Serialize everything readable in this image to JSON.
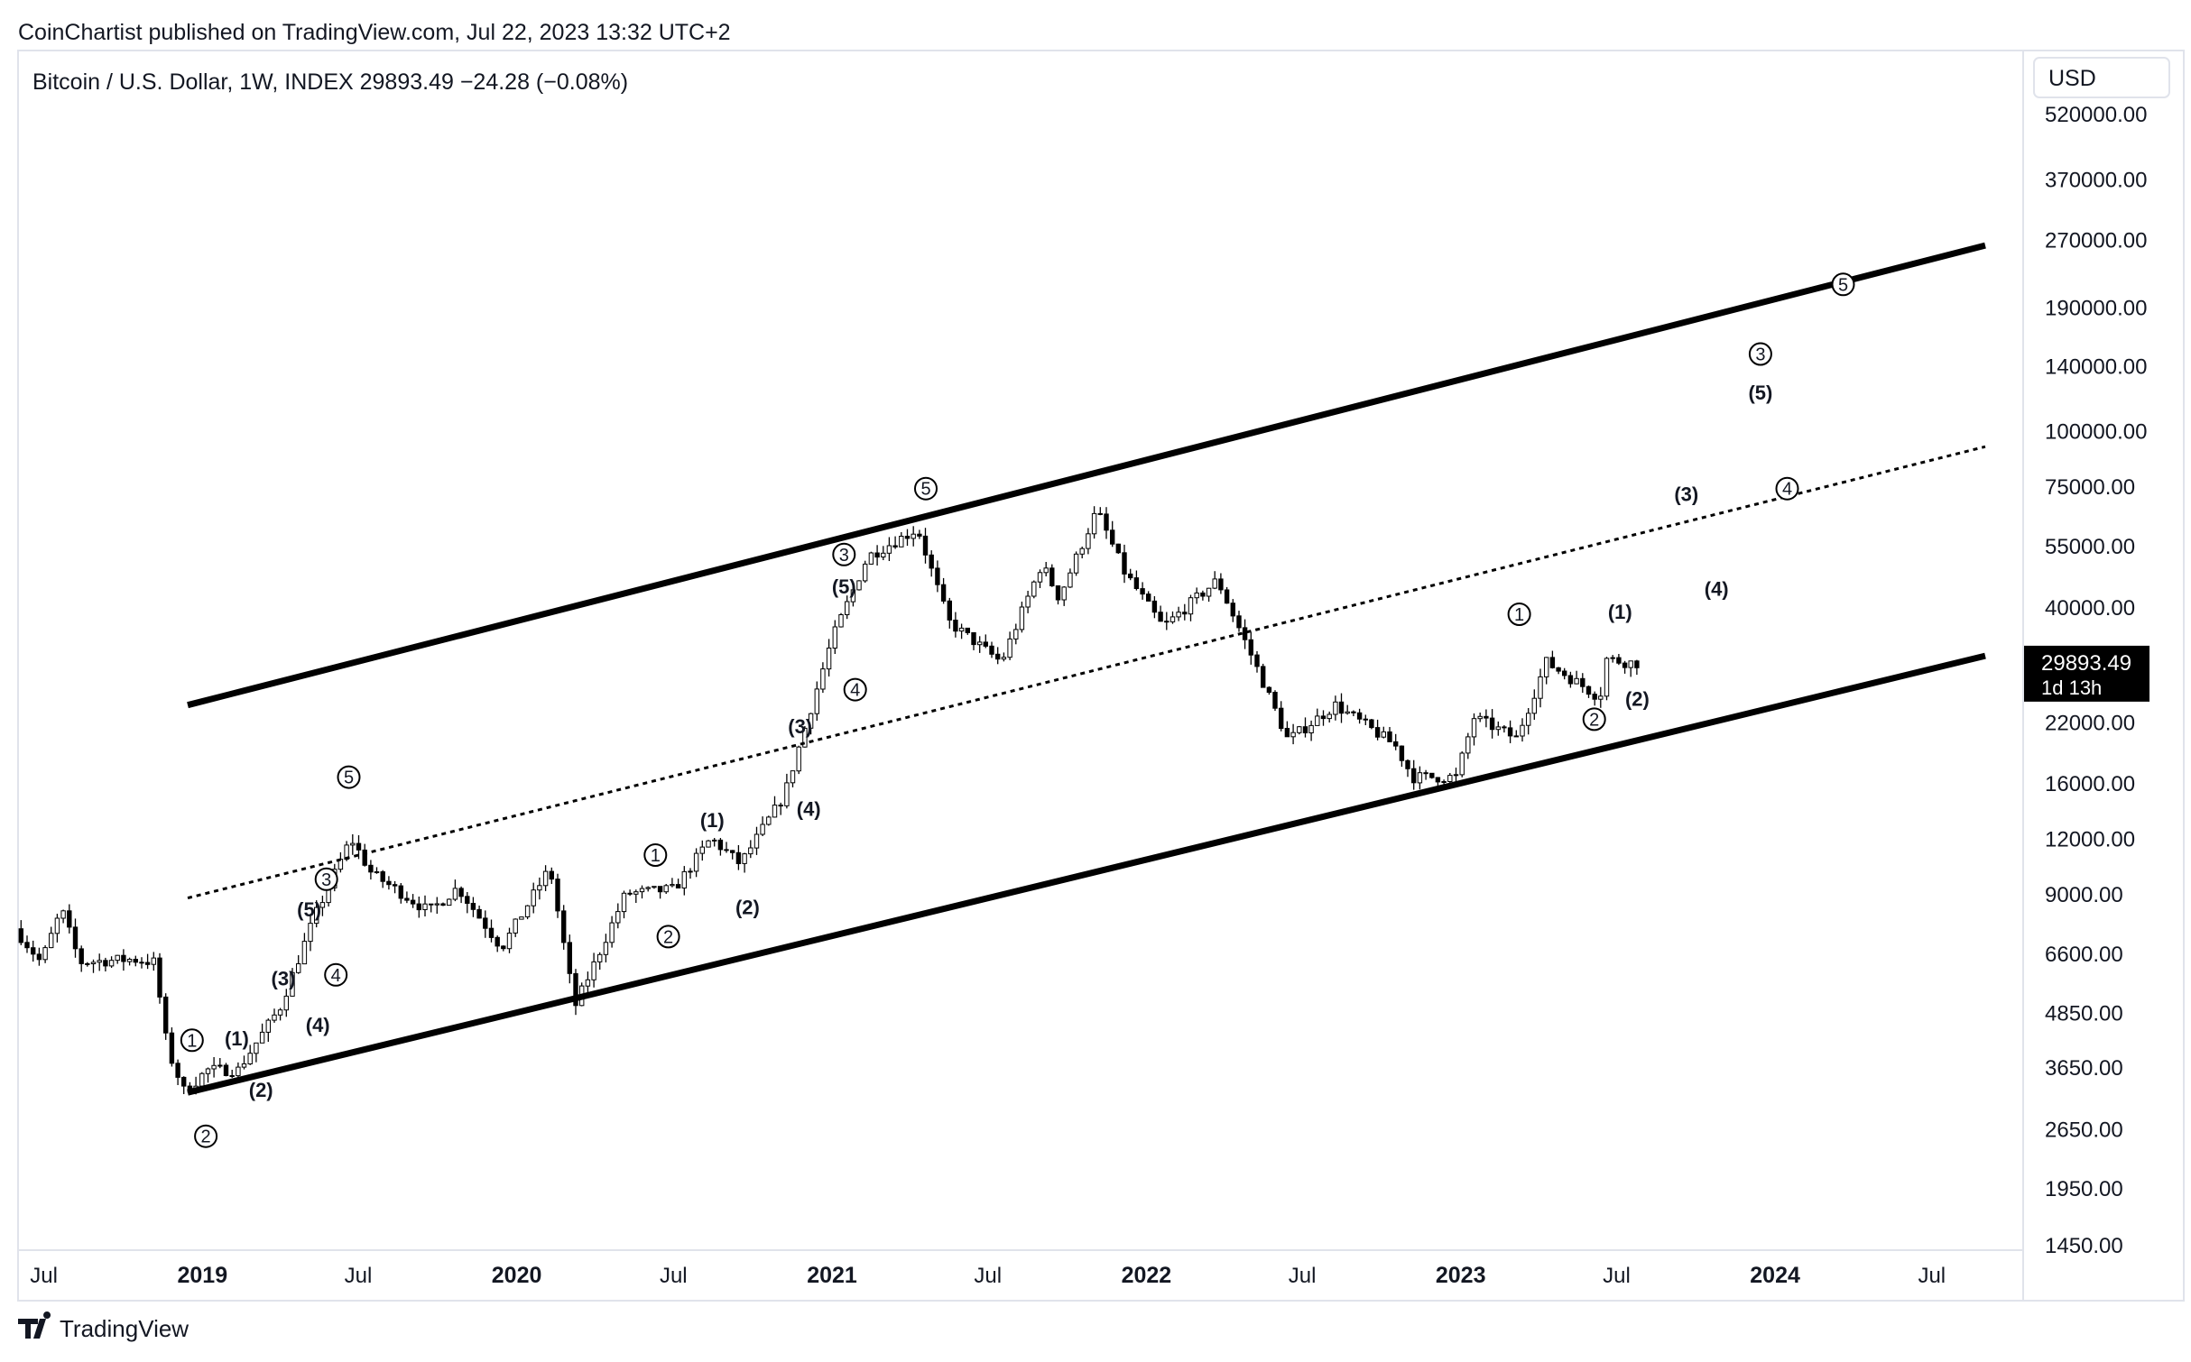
{
  "publisher_line": "CoinChartist published on TradingView.com, Jul 22, 2023 13:32 UTC+2",
  "symbol_line": "Bitcoin / U.S. Dollar, 1W, INDEX  29893.49  −24.28 (−0.08%)",
  "currency_button": "USD",
  "last_price": {
    "value": "29893.49",
    "countdown": "1d 13h"
  },
  "brand": "TradingView",
  "colors": {
    "text": "#131722",
    "channel": "#000000",
    "price_tag_bg": "#000000",
    "price_tag_text": "#ffffff",
    "border": "#e0e3eb"
  },
  "chart_data": {
    "type": "candlestick",
    "scale": "log",
    "interval": "1W",
    "y_ticks": [
      520000,
      370000,
      270000,
      190000,
      140000,
      100000,
      75000,
      55000,
      40000,
      22000,
      16000,
      12000,
      9000,
      6600,
      4850,
      3650,
      2650,
      1950,
      1450
    ],
    "y_tick_labels": [
      "520000.00",
      "370000.00",
      "270000.00",
      "190000.00",
      "140000.00",
      "100000.00",
      "75000.00",
      "55000.00",
      "40000.00",
      "22000.00",
      "16000.00",
      "12000.00",
      "9000.00",
      "6600.00",
      "4850.00",
      "3650.00",
      "2650.00",
      "1950.00",
      "1450.00"
    ],
    "x_ticks": [
      {
        "label": "Jul",
        "date": "2018-07-01",
        "bold": false
      },
      {
        "label": "2019",
        "date": "2019-01-01",
        "bold": true
      },
      {
        "label": "Jul",
        "date": "2019-07-01",
        "bold": false
      },
      {
        "label": "2020",
        "date": "2020-01-01",
        "bold": true
      },
      {
        "label": "Jul",
        "date": "2020-07-01",
        "bold": false
      },
      {
        "label": "2021",
        "date": "2021-01-01",
        "bold": true
      },
      {
        "label": "Jul",
        "date": "2021-07-01",
        "bold": false
      },
      {
        "label": "2022",
        "date": "2022-01-01",
        "bold": true
      },
      {
        "label": "Jul",
        "date": "2022-07-01",
        "bold": false
      },
      {
        "label": "2023",
        "date": "2023-01-01",
        "bold": true
      },
      {
        "label": "Jul",
        "date": "2023-07-01",
        "bold": false
      },
      {
        "label": "2024",
        "date": "2024-01-01",
        "bold": true
      },
      {
        "label": "Jul",
        "date": "2024-07-01",
        "bold": false
      }
    ],
    "price_path": [
      [
        "2018-06-01",
        7500
      ],
      [
        "2018-07-01",
        6300
      ],
      [
        "2018-07-25",
        8300
      ],
      [
        "2018-08-15",
        6300
      ],
      [
        "2018-10-15",
        6400
      ],
      [
        "2018-11-10",
        6300
      ],
      [
        "2018-11-25",
        4000
      ],
      [
        "2018-12-15",
        3200
      ],
      [
        "2019-01-10",
        3600
      ],
      [
        "2019-02-15",
        3600
      ],
      [
        "2019-04-05",
        5000
      ],
      [
        "2019-05-15",
        8000
      ],
      [
        "2019-06-26",
        12000
      ],
      [
        "2019-07-20",
        10000
      ],
      [
        "2019-09-25",
        8200
      ],
      [
        "2019-10-28",
        9300
      ],
      [
        "2019-12-18",
        6800
      ],
      [
        "2020-02-12",
        10300
      ],
      [
        "2020-03-12",
        5000
      ],
      [
        "2020-05-10",
        9000
      ],
      [
        "2020-07-05",
        9200
      ],
      [
        "2020-08-17",
        12000
      ],
      [
        "2020-09-20",
        10500
      ],
      [
        "2020-11-10",
        15000
      ],
      [
        "2021-01-05",
        34000
      ],
      [
        "2021-02-15",
        52000
      ],
      [
        "2021-04-14",
        60000
      ],
      [
        "2021-05-20",
        37000
      ],
      [
        "2021-07-20",
        30000
      ],
      [
        "2021-09-05",
        50000
      ],
      [
        "2021-09-25",
        42000
      ],
      [
        "2021-11-08",
        66000
      ],
      [
        "2021-12-10",
        48000
      ],
      [
        "2022-01-24",
        36000
      ],
      [
        "2022-03-28",
        46000
      ],
      [
        "2022-05-10",
        30000
      ],
      [
        "2022-06-18",
        20000
      ],
      [
        "2022-08-12",
        24000
      ],
      [
        "2022-10-20",
        19500
      ],
      [
        "2022-11-10",
        16500
      ],
      [
        "2022-12-30",
        16500
      ],
      [
        "2023-01-20",
        22500
      ],
      [
        "2023-03-10",
        20200
      ],
      [
        "2023-04-14",
        30000
      ],
      [
        "2023-06-15",
        25000
      ],
      [
        "2023-06-23",
        30500
      ],
      [
        "2023-07-22",
        29893.49
      ]
    ],
    "channel_lines": [
      {
        "style": "solid",
        "from": [
          "2018-12-15",
          3200
        ],
        "to": [
          "2024-09-01",
          31000
        ]
      },
      {
        "style": "solid",
        "from": [
          "2018-12-15",
          24000
        ],
        "to": [
          "2024-09-01",
          262000
        ]
      },
      {
        "style": "dotted",
        "from": [
          "2018-12-15",
          8800
        ],
        "to": [
          "2024-09-01",
          92000
        ]
      }
    ],
    "wave_labels": [
      {
        "text": "①",
        "date": "2018-12-20",
        "price": 4200
      },
      {
        "text": "②",
        "date": "2019-01-05",
        "price": 2550
      },
      {
        "text": "(1)",
        "date": "2019-02-10",
        "price": 4250
      },
      {
        "text": "(2)",
        "date": "2019-03-10",
        "price": 3250
      },
      {
        "text": "(3)",
        "date": "2019-04-05",
        "price": 5800
      },
      {
        "text": "(4)",
        "date": "2019-05-15",
        "price": 4550
      },
      {
        "text": "(5)",
        "date": "2019-05-05",
        "price": 8300
      },
      {
        "text": "③",
        "date": "2019-05-25",
        "price": 9700
      },
      {
        "text": "④",
        "date": "2019-06-05",
        "price": 5900
      },
      {
        "text": "⑤",
        "date": "2019-06-20",
        "price": 16500
      },
      {
        "text": "①",
        "date": "2020-06-10",
        "price": 11000
      },
      {
        "text": "②",
        "date": "2020-06-25",
        "price": 7200
      },
      {
        "text": "(1)",
        "date": "2020-08-15",
        "price": 13200
      },
      {
        "text": "(2)",
        "date": "2020-09-25",
        "price": 8400
      },
      {
        "text": "(3)",
        "date": "2020-11-25",
        "price": 21500
      },
      {
        "text": "(4)",
        "date": "2020-12-05",
        "price": 14000
      },
      {
        "text": "③",
        "date": "2021-01-15",
        "price": 52500
      },
      {
        "text": "(5)",
        "date": "2021-01-15",
        "price": 44500
      },
      {
        "text": "④",
        "date": "2021-01-28",
        "price": 26000
      },
      {
        "text": "⑤",
        "date": "2021-04-20",
        "price": 74000
      },
      {
        "text": "①",
        "date": "2023-03-10",
        "price": 38500
      },
      {
        "text": "(1)",
        "date": "2023-07-05",
        "price": 39000
      },
      {
        "text": "②",
        "date": "2023-06-05",
        "price": 22300
      },
      {
        "text": "(2)",
        "date": "2023-07-25",
        "price": 24800
      },
      {
        "text": "(3)",
        "date": "2023-09-20",
        "price": 72000
      },
      {
        "text": "(4)",
        "date": "2023-10-25",
        "price": 44000
      },
      {
        "text": "③",
        "date": "2023-12-15",
        "price": 149000
      },
      {
        "text": "(5)",
        "date": "2023-12-15",
        "price": 122000
      },
      {
        "text": "④",
        "date": "2024-01-15",
        "price": 74000
      },
      {
        "text": "⑤",
        "date": "2024-03-20",
        "price": 214000
      }
    ]
  }
}
